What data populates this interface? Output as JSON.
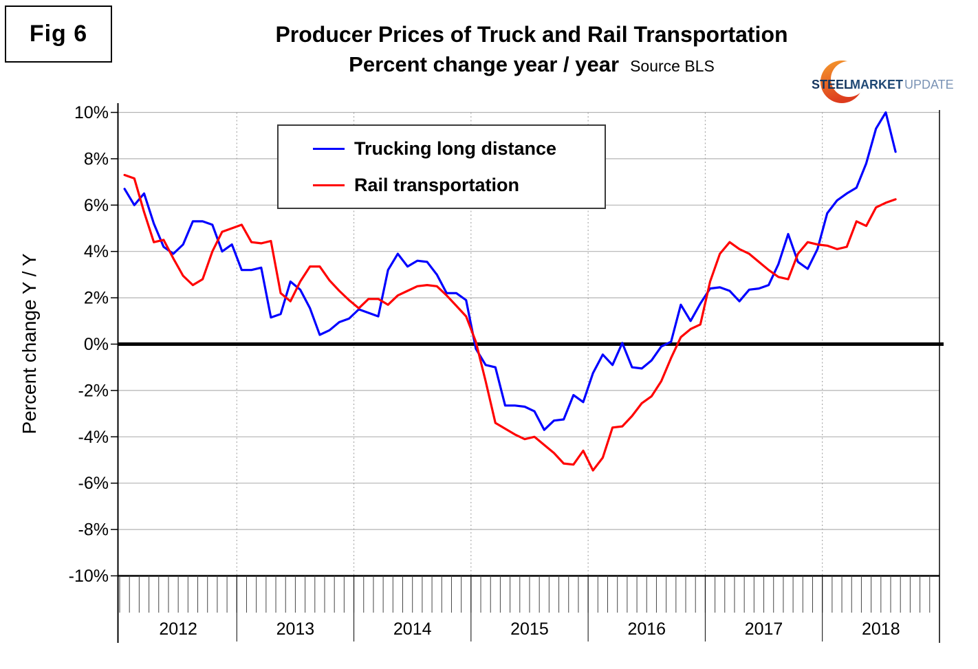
{
  "figure_label": "Fig 6",
  "title": "Producer Prices of Truck and Rail Transportation",
  "subtitle": "Percent change year / year",
  "source": "Source BLS",
  "logo": {
    "word1": "STEEL",
    "word2": "MARKET",
    "word3": "UPDATE",
    "navy": "#15355e",
    "blue": "#1f4875",
    "light_blue": "#7a93b5",
    "orange_top": "#f59b2d",
    "orange_bottom": "#dd3b1d"
  },
  "colors": {
    "grid": "#b3b3b3",
    "axis": "#000000",
    "zero_line": "#000000",
    "trucking": "#0000ff",
    "rail": "#ff0000"
  },
  "chart_data": {
    "type": "line",
    "title": "Producer Prices of Truck and Rail Transportation",
    "subtitle": "Percent change year / year",
    "ylabel": "Percent change Y / Y",
    "xlabel": "",
    "ylim": [
      -10,
      10
    ],
    "ytick_step": 2,
    "y_tick_values": [
      10,
      8,
      6,
      4,
      2,
      0,
      -2,
      -4,
      -6,
      -8,
      -10
    ],
    "y_tick_labels": [
      "10%",
      "8%",
      "6%",
      "4%",
      "2%",
      "0%",
      "-2%",
      "-4%",
      "-6%",
      "-8%",
      "-10%"
    ],
    "x_axis": {
      "years": [
        "2012",
        "2013",
        "2014",
        "2015",
        "2016",
        "2017",
        "2018"
      ],
      "start_month": "2012-01",
      "end_month": "2018-08",
      "frequency": "monthly"
    },
    "grid": true,
    "legend_position": "top-left-inside",
    "series": [
      {
        "name": "Trucking long distance",
        "color": "#0000ff",
        "values": [
          6.7,
          6.0,
          6.5,
          5.2,
          4.2,
          3.9,
          4.3,
          5.3,
          5.3,
          5.15,
          4.0,
          4.3,
          3.2,
          3.2,
          3.3,
          1.15,
          1.3,
          2.7,
          2.35,
          1.55,
          0.4,
          0.6,
          0.95,
          1.1,
          1.5,
          1.35,
          1.2,
          3.2,
          3.9,
          3.35,
          3.6,
          3.55,
          3.0,
          2.2,
          2.2,
          1.9,
          -0.2,
          -0.9,
          -1.0,
          -2.65,
          -2.65,
          -2.7,
          -2.9,
          -3.7,
          -3.3,
          -3.25,
          -2.2,
          -2.5,
          -1.25,
          -0.45,
          -0.9,
          0.05,
          -1.0,
          -1.05,
          -0.7,
          -0.1,
          0.1,
          1.7,
          1.0,
          1.75,
          2.4,
          2.45,
          2.3,
          1.85,
          2.35,
          2.4,
          2.55,
          3.45,
          4.75,
          3.55,
          3.25,
          4.1,
          5.65,
          6.2,
          6.5,
          6.75,
          7.8,
          9.3,
          10.0,
          8.3
        ]
      },
      {
        "name": "Rail transportation",
        "color": "#ff0000",
        "values": [
          7.3,
          7.15,
          5.7,
          4.4,
          4.5,
          3.7,
          2.95,
          2.55,
          2.8,
          4.0,
          4.85,
          5.0,
          5.15,
          4.4,
          4.35,
          4.45,
          2.2,
          1.85,
          2.7,
          3.35,
          3.35,
          2.75,
          2.3,
          1.9,
          1.55,
          1.95,
          1.95,
          1.7,
          2.1,
          2.3,
          2.5,
          2.55,
          2.5,
          2.1,
          1.65,
          1.2,
          0.1,
          -1.6,
          -3.4,
          -3.65,
          -3.9,
          -4.1,
          -4.0,
          -4.35,
          -4.7,
          -5.15,
          -5.2,
          -4.6,
          -5.45,
          -4.9,
          -3.6,
          -3.55,
          -3.1,
          -2.55,
          -2.25,
          -1.6,
          -0.6,
          0.3,
          0.65,
          0.85,
          2.7,
          3.9,
          4.4,
          4.1,
          3.9,
          3.55,
          3.2,
          2.9,
          2.8,
          3.9,
          4.4,
          4.3,
          4.25,
          4.1,
          4.2,
          5.3,
          5.1,
          5.9,
          6.1,
          6.25
        ]
      }
    ]
  }
}
